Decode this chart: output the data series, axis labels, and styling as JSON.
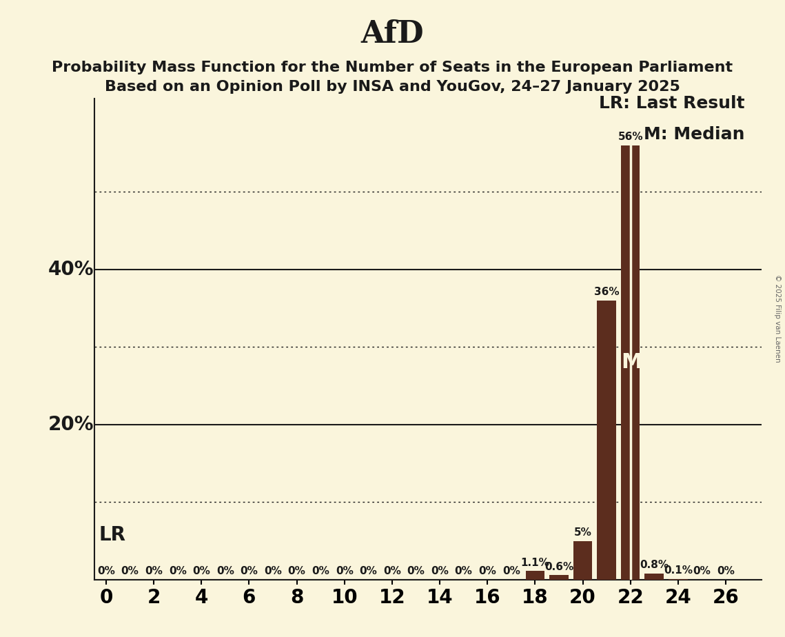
{
  "title": "AfD",
  "subtitle1": "Probability Mass Function for the Number of Seats in the European Parliament",
  "subtitle2": "Based on an Opinion Poll by INSA and YouGov, 24–27 January 2025",
  "copyright": "© 2025 Filip van Laenen",
  "background_color": "#FAF5DC",
  "bar_color": "#5C2D1E",
  "median_line_color": "#FAF5DC",
  "seats": [
    0,
    1,
    2,
    3,
    4,
    5,
    6,
    7,
    8,
    9,
    10,
    11,
    12,
    13,
    14,
    15,
    16,
    17,
    18,
    19,
    20,
    21,
    22,
    23,
    24,
    25,
    26
  ],
  "probabilities": [
    0.0,
    0.0,
    0.0,
    0.0,
    0.0,
    0.0,
    0.0,
    0.0,
    0.0,
    0.0,
    0.0,
    0.0,
    0.0,
    0.0,
    0.0,
    0.0,
    0.0,
    0.0,
    1.1,
    0.6,
    5.0,
    36.0,
    56.0,
    0.8,
    0.1,
    0.0,
    0.0
  ],
  "last_result_seat": 22,
  "median_seat": 22,
  "solid_yticks": [
    0,
    20,
    40
  ],
  "dotted_yticks": [
    10,
    30,
    50
  ],
  "xlim": [
    -0.5,
    27.5
  ],
  "ylim": [
    0,
    62
  ],
  "xticks": [
    0,
    2,
    4,
    6,
    8,
    10,
    12,
    14,
    16,
    18,
    20,
    22,
    24,
    26
  ],
  "bar_width": 0.8,
  "title_fontsize": 32,
  "subtitle_fontsize": 16,
  "tick_fontsize": 20,
  "bar_label_fontsize": 11,
  "m_annotation_fontsize": 22,
  "lr_annotation_fontsize": 20,
  "legend_fontsize": 18,
  "solid_line_color": "#1a1a1a",
  "dotted_line_color": "#1a1a1a"
}
